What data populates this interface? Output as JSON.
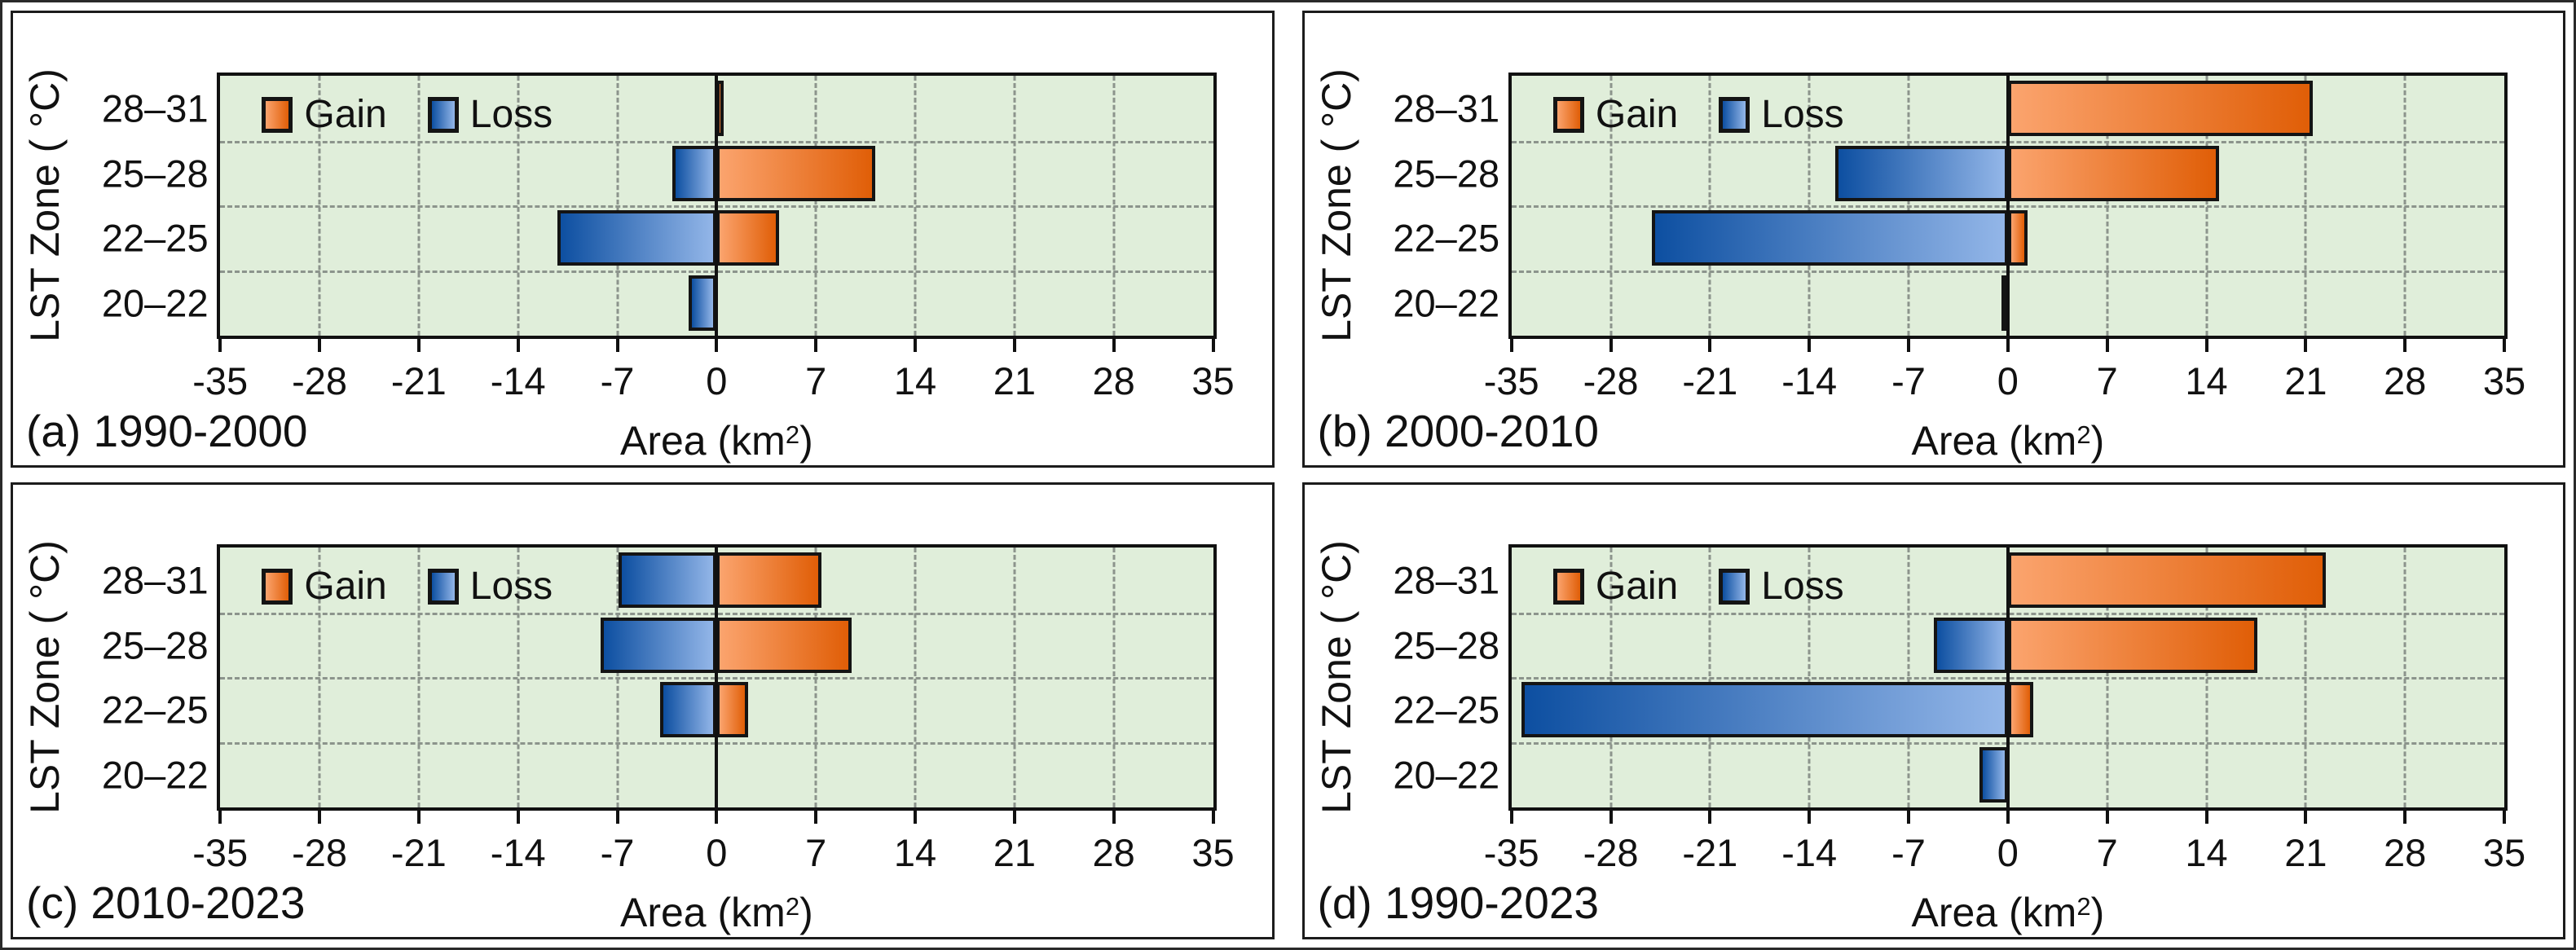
{
  "legend": {
    "gain": "Gain",
    "loss": "Loss"
  },
  "colors": {
    "gain_light": "#FBA46E",
    "gain_dark": "#E05E07",
    "loss_dark": "#0D4FA1",
    "loss_light": "#93B6E8",
    "plot_bg": "#E0EEDA",
    "grid": "#8C948C",
    "axis": "#111111"
  },
  "axis": {
    "xlim": [
      -35,
      35
    ],
    "xticks": [
      -35,
      -28,
      -21,
      -14,
      -7,
      0,
      7,
      14,
      21,
      28,
      35
    ],
    "xlabel_pre": "Area (km",
    "xlabel_sup": "2",
    "xlabel_post": ")",
    "ylabel": "LST Zone ( °C)",
    "categories": [
      "28–31",
      "25–28",
      "22–25",
      "20–22"
    ]
  },
  "chart_data": [
    {
      "type": "bar",
      "caption": "(a) 1990-2000",
      "xlabel": "Area (km2)",
      "ylabel": "LST Zone ( °C)",
      "xlim": [
        -35,
        35
      ],
      "grid": true,
      "legend_position": "top-left-inside",
      "categories": [
        "28–31",
        "25–28",
        "22–25",
        "20–22"
      ],
      "series": [
        {
          "name": "Gain",
          "values": [
            0.5,
            11.2,
            4.4,
            0
          ]
        },
        {
          "name": "Loss",
          "values": [
            0,
            -3.1,
            -11.2,
            -2.0
          ]
        }
      ]
    },
    {
      "type": "bar",
      "caption": "(b) 2000-2010",
      "xlabel": "Area (km2)",
      "ylabel": "LST Zone ( °C)",
      "xlim": [
        -35,
        35
      ],
      "grid": true,
      "legend_position": "top-left-inside",
      "categories": [
        "28–31",
        "25–28",
        "22–25",
        "20–22"
      ],
      "series": [
        {
          "name": "Gain",
          "values": [
            21.5,
            14.9,
            1.4,
            0
          ]
        },
        {
          "name": "Loss",
          "values": [
            0,
            -12.2,
            -25.1,
            -0.3
          ]
        }
      ]
    },
    {
      "type": "bar",
      "caption": "(c) 2010-2023",
      "xlabel": "Area (km2)",
      "ylabel": "LST Zone ( °C)",
      "xlim": [
        -35,
        35
      ],
      "grid": true,
      "legend_position": "top-left-inside",
      "categories": [
        "28–31",
        "25–28",
        "22–25",
        "20–22"
      ],
      "series": [
        {
          "name": "Gain",
          "values": [
            7.4,
            9.5,
            2.2,
            0
          ]
        },
        {
          "name": "Loss",
          "values": [
            -6.9,
            -8.2,
            -4.0,
            0
          ]
        }
      ]
    },
    {
      "type": "bar",
      "caption": "(d) 1990-2023",
      "xlabel": "Area (km2)",
      "ylabel": "LST Zone ( °C)",
      "xlim": [
        -35,
        35
      ],
      "grid": true,
      "legend_position": "top-left-inside",
      "categories": [
        "28–31",
        "25–28",
        "22–25",
        "20–22"
      ],
      "series": [
        {
          "name": "Gain",
          "values": [
            22.4,
            17.6,
            1.8,
            0
          ]
        },
        {
          "name": "Loss",
          "values": [
            0,
            -5.2,
            -34.3,
            -2.0
          ]
        }
      ]
    }
  ]
}
